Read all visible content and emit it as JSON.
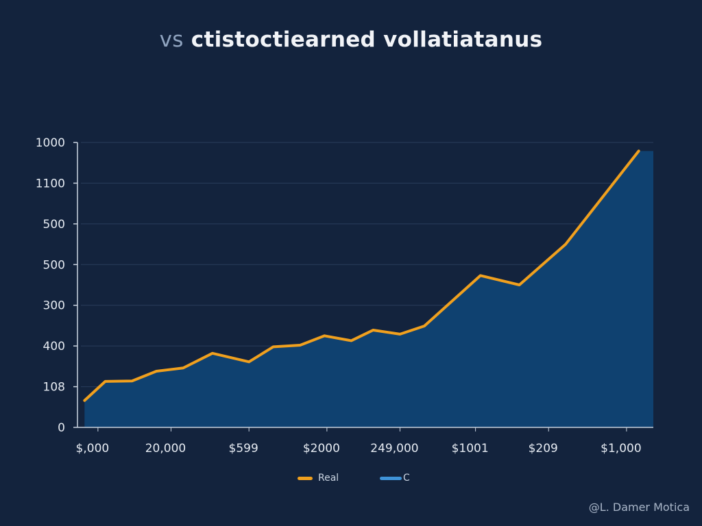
{
  "chart_data": {
    "type": "area",
    "title_prefix": "vs",
    "title": "ctistoctiearned vollatiatanus",
    "xlabel": "",
    "ylabel": "",
    "y_ticks": [
      {
        "value": 0,
        "label": "0"
      },
      {
        "value": 1,
        "label": "108"
      },
      {
        "value": 2,
        "label": "400"
      },
      {
        "value": 3,
        "label": "300"
      },
      {
        "value": 4,
        "label": "500"
      },
      {
        "value": 5,
        "label": "500"
      },
      {
        "value": 6,
        "label": "1100"
      },
      {
        "value": 7,
        "label": "1000"
      }
    ],
    "x_ticks": [
      {
        "value": 0.7,
        "label": "$,000"
      },
      {
        "value": 3.7,
        "label": "20,000"
      },
      {
        "value": 6.9,
        "label": "$599"
      },
      {
        "value": 10.1,
        "label": "$2000"
      },
      {
        "value": 13.1,
        "label": "249,000"
      },
      {
        "value": 16.2,
        "label": "$1001"
      },
      {
        "value": 19.2,
        "label": "$209"
      },
      {
        "value": 22.4,
        "label": "$1,000"
      }
    ],
    "xlim": [
      0,
      23.5
    ],
    "ylim": [
      0,
      7
    ],
    "grid": true,
    "series": [
      {
        "name": "Real",
        "color": "#f0a01e",
        "x": [
          0.15,
          1.0,
          2.1,
          3.1,
          4.2,
          5.4,
          6.9,
          7.9,
          9.0,
          10.0,
          11.1,
          12.0,
          13.1,
          14.1,
          16.4,
          18.0,
          19.9,
          22.9
        ],
        "y": [
          0.66,
          1.13,
          1.14,
          1.38,
          1.46,
          1.82,
          1.61,
          1.98,
          2.02,
          2.25,
          2.13,
          2.39,
          2.29,
          2.49,
          3.73,
          3.5,
          4.5,
          6.79
        ]
      },
      {
        "name": "C",
        "color": "#3f93d8",
        "fill": "#0f4170"
      }
    ],
    "legend_position": "bottom-center"
  },
  "credit": "@L. Damer Motica"
}
